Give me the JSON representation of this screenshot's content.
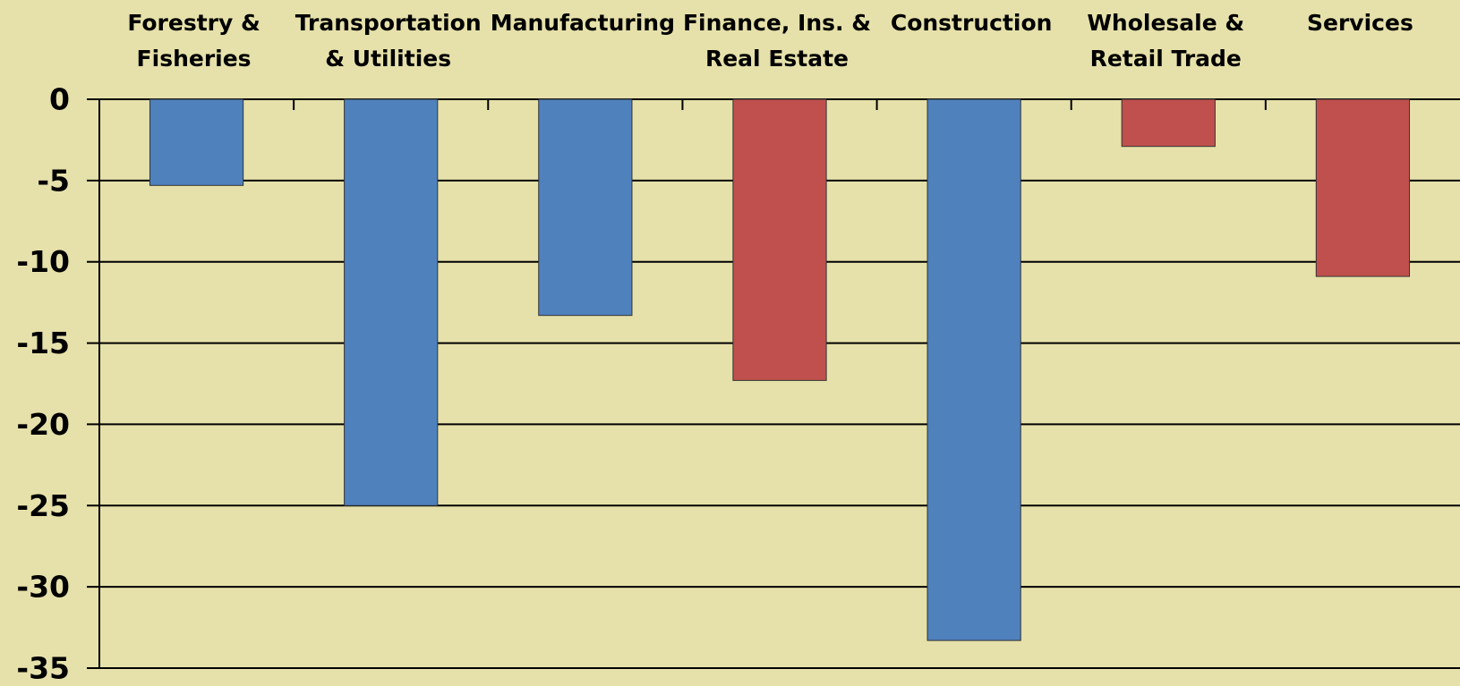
{
  "chart_data": {
    "type": "bar",
    "categories": [
      "Forestry &\nFisheries",
      "Transportation\n& Utilities",
      "Manufacturing",
      "Finance, Ins. &\nReal Estate",
      "Construction",
      "Wholesale &\nRetail Trade",
      "Services"
    ],
    "values": [
      -5.3,
      -25,
      -13.3,
      -17.3,
      -33.3,
      -2.9,
      -10.9
    ],
    "colors": [
      "#4f81bd",
      "#4f81bd",
      "#4f81bd",
      "#c0504d",
      "#4f81bd",
      "#c0504d",
      "#c0504d"
    ],
    "ylim": [
      -35,
      0
    ],
    "yticks": [
      0,
      -5,
      -10,
      -15,
      -20,
      -25,
      -30,
      -35
    ],
    "grid": true
  }
}
